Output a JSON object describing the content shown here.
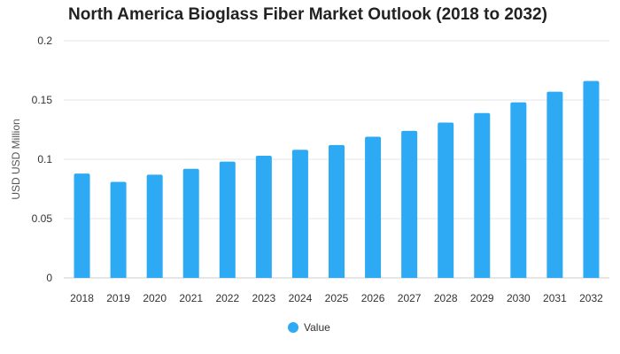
{
  "chart_data": {
    "type": "bar",
    "title": "North America Bioglass Fiber Market Outlook (2018 to 2032)",
    "xlabel": "",
    "ylabel": "USD USD Million",
    "categories": [
      "2018",
      "2019",
      "2020",
      "2021",
      "2022",
      "2023",
      "2024",
      "2025",
      "2026",
      "2027",
      "2028",
      "2029",
      "2030",
      "2031",
      "2032"
    ],
    "series": [
      {
        "name": "Value",
        "values": [
          0.088,
          0.081,
          0.087,
          0.092,
          0.098,
          0.103,
          0.108,
          0.112,
          0.119,
          0.124,
          0.131,
          0.139,
          0.148,
          0.157,
          0.166
        ],
        "color": "#2eaaf5"
      }
    ],
    "ylim": [
      0,
      0.2
    ],
    "yticks": [
      "0",
      "0.05",
      "0.1",
      "0.15",
      "0.2"
    ],
    "grid": true,
    "legend_position": "bottom"
  }
}
